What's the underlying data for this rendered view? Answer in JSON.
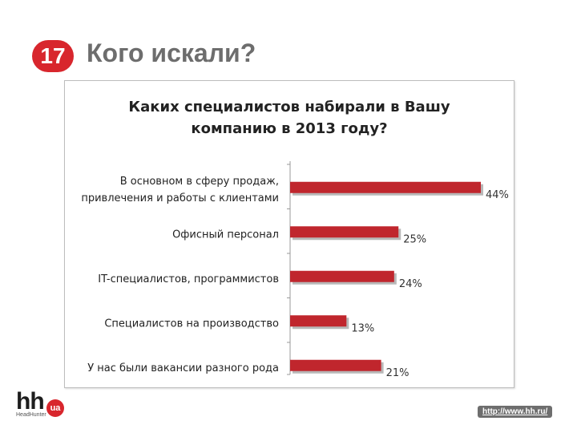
{
  "slide": {
    "number": "17",
    "title": "Кого искали?",
    "url": "http://www.hh.ru/",
    "logo": {
      "text": "hh",
      "badge": "ua",
      "subtext": "HeadHunter"
    }
  },
  "colors": {
    "bar": "#c0262d",
    "accent": "#d8262d"
  },
  "chart_data": {
    "type": "bar",
    "orientation": "horizontal",
    "title": [
      "Каких специалистов набирали в Вашу",
      "компанию в 2013 году?"
    ],
    "categories": [
      [
        "В основном в сферу продаж,",
        "привлечения и работы с клиентами"
      ],
      [
        "Офисный персонал"
      ],
      [
        "IT-специалистов, программистов"
      ],
      [
        "Специалистов на производство"
      ],
      [
        "У нас были вакансии разного рода"
      ]
    ],
    "values": [
      44,
      25,
      24,
      13,
      21
    ],
    "value_labels": [
      "44%",
      "25%",
      "24%",
      "13%",
      "21%"
    ],
    "xlim": [
      0,
      50
    ],
    "grid": false,
    "legend": "none"
  }
}
